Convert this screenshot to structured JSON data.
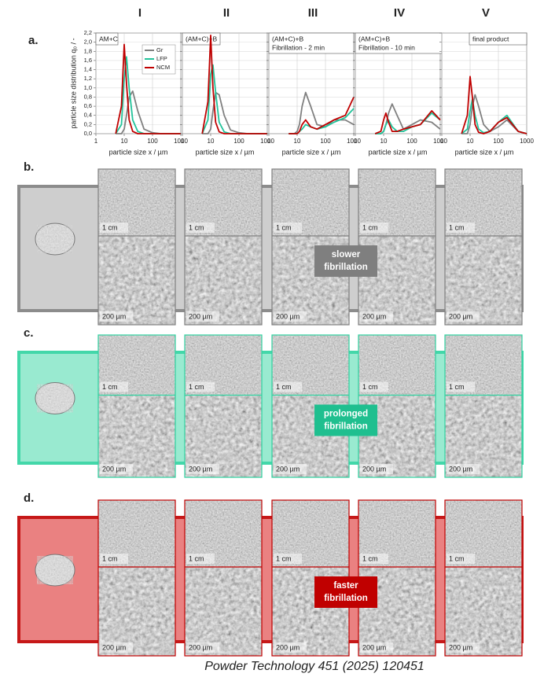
{
  "column_headers": [
    "I",
    "II",
    "III",
    "IV",
    "V"
  ],
  "panel_a_label": "a.",
  "chart_data": [
    {
      "type": "line",
      "y_label": "particle size distribution q₀ / -",
      "x_label": "particle size x / µm",
      "annotation": [
        "AM+C"
      ],
      "xlim": [
        1,
        1000
      ],
      "xticks": [
        1,
        10,
        100,
        1000
      ],
      "log_x": true,
      "ylim": [
        0,
        2.2
      ],
      "grid": true,
      "legend": "top-right",
      "yticks": [
        {
          "value": 0,
          "label": "0,0"
        },
        {
          "value": 0.2,
          "label": "0,2"
        },
        {
          "value": 0.4,
          "label": "0,4"
        },
        {
          "value": 0.6,
          "label": "0,6"
        },
        {
          "value": 0.8,
          "label": "0,8"
        },
        {
          "value": 1,
          "label": "1,0"
        },
        {
          "value": 1.2,
          "label": "1,2"
        },
        {
          "value": 1.4,
          "label": "1,4"
        },
        {
          "value": 1.6,
          "label": "1,6"
        },
        {
          "value": 1.8,
          "label": "1,8"
        },
        {
          "value": 2,
          "label": "2,0"
        },
        {
          "value": 2.2,
          "label": "2,2"
        }
      ],
      "x": [
        5,
        8,
        10,
        12,
        15,
        20,
        30,
        50,
        100,
        200,
        500,
        1000
      ],
      "series": [
        {
          "name": "Gr",
          "color": "#808080",
          "values": [
            0,
            0,
            0.1,
            0.4,
            0.8,
            0.93,
            0.5,
            0.1,
            0.02,
            0,
            0,
            0
          ]
        },
        {
          "name": "LFP",
          "color": "#22c39a",
          "values": [
            0,
            0.2,
            1.2,
            1.68,
            1.0,
            0.3,
            0.05,
            0,
            0,
            0,
            0,
            0
          ]
        },
        {
          "name": "NCM",
          "color": "#c00000",
          "values": [
            0,
            0.6,
            1.95,
            1.1,
            0.3,
            0.05,
            0,
            0,
            0,
            0,
            0,
            0
          ]
        }
      ]
    },
    {
      "type": "line",
      "x_label": "particle size x / µm",
      "annotation": [
        "(AM+C)+B"
      ],
      "xlim": [
        1,
        1000
      ],
      "xticks": [
        1,
        10,
        100,
        1000
      ],
      "log_x": true,
      "ylim": [
        0,
        2.2
      ],
      "grid": true,
      "x": [
        5,
        8,
        10,
        12,
        15,
        20,
        30,
        50,
        100,
        200,
        500,
        1000
      ],
      "series": [
        {
          "color": "#808080",
          "values": [
            0,
            0,
            0.1,
            0.5,
            0.9,
            0.85,
            0.4,
            0.08,
            0.02,
            0,
            0,
            0
          ]
        },
        {
          "color": "#22c39a",
          "values": [
            0,
            0.3,
            1.3,
            1.5,
            0.9,
            0.25,
            0.04,
            0,
            0,
            0,
            0,
            0
          ]
        },
        {
          "color": "#c00000",
          "values": [
            0,
            0.7,
            2.15,
            1.0,
            0.25,
            0.04,
            0,
            0,
            0,
            0,
            0,
            0
          ]
        }
      ]
    },
    {
      "type": "line",
      "x_label": "particle size x / µm",
      "annotation": [
        "(AM+C)+B",
        "Fibrillation - 2 min"
      ],
      "xlim": [
        1,
        1000
      ],
      "xticks": [
        1,
        10,
        100,
        1000
      ],
      "log_x": true,
      "ylim": [
        0,
        2.2
      ],
      "grid": true,
      "x": [
        5,
        8,
        10,
        12,
        15,
        20,
        30,
        50,
        100,
        200,
        500,
        1000
      ],
      "series": [
        {
          "color": "#808080",
          "values": [
            0,
            0,
            0.05,
            0.2,
            0.6,
            0.9,
            0.6,
            0.2,
            0.15,
            0.3,
            0.3,
            0.2
          ]
        },
        {
          "color": "#22c39a",
          "values": [
            0,
            0,
            0,
            0.05,
            0.1,
            0.2,
            0.15,
            0.1,
            0.15,
            0.25,
            0.35,
            0.55
          ]
        },
        {
          "color": "#c00000",
          "values": [
            0,
            0,
            0,
            0.05,
            0.2,
            0.3,
            0.15,
            0.1,
            0.2,
            0.3,
            0.4,
            0.8
          ]
        }
      ]
    },
    {
      "type": "line",
      "x_label": "particle size x / µm",
      "annotation": [
        "(AM+C)+B",
        "Fibrillation - 10 min"
      ],
      "xlim": [
        1,
        1000
      ],
      "xticks": [
        1,
        10,
        100,
        1000
      ],
      "log_x": true,
      "ylim": [
        0,
        2.2
      ],
      "grid": true,
      "x": [
        5,
        8,
        10,
        12,
        15,
        20,
        30,
        50,
        100,
        200,
        500,
        1000
      ],
      "series": [
        {
          "color": "#808080",
          "values": [
            0,
            0,
            0.05,
            0.2,
            0.45,
            0.65,
            0.4,
            0.1,
            0.2,
            0.3,
            0.25,
            0.1
          ]
        },
        {
          "color": "#22c39a",
          "values": [
            0,
            0,
            0.05,
            0.2,
            0.3,
            0.15,
            0.05,
            0.05,
            0.15,
            0.2,
            0.45,
            0.3
          ]
        },
        {
          "color": "#c00000",
          "values": [
            0,
            0.05,
            0.3,
            0.45,
            0.25,
            0.05,
            0.05,
            0.1,
            0.15,
            0.2,
            0.5,
            0.3
          ]
        }
      ]
    },
    {
      "type": "line",
      "x_label": "particle size x / µm",
      "annotation": [
        "final product"
      ],
      "xlim": [
        1,
        1000
      ],
      "xticks": [
        1,
        10,
        100,
        1000
      ],
      "log_x": true,
      "ylim": [
        0,
        2.2
      ],
      "grid": true,
      "x": [
        5,
        8,
        10,
        12,
        15,
        20,
        30,
        50,
        100,
        200,
        500,
        1000
      ],
      "series": [
        {
          "color": "#808080",
          "values": [
            0,
            0,
            0.2,
            0.6,
            0.85,
            0.6,
            0.2,
            0.05,
            0.15,
            0.3,
            0.05,
            0
          ]
        },
        {
          "color": "#22c39a",
          "values": [
            0,
            0.1,
            0.5,
            0.75,
            0.4,
            0.1,
            0.02,
            0.05,
            0.25,
            0.4,
            0.05,
            0
          ]
        },
        {
          "color": "#c00000",
          "values": [
            0,
            0.4,
            1.25,
            0.8,
            0.2,
            0.03,
            0,
            0.05,
            0.25,
            0.35,
            0.05,
            0
          ]
        }
      ]
    }
  ],
  "scale_bars": {
    "top": "1 cm",
    "bottom": "200 µm"
  },
  "panels": [
    {
      "label": "b.",
      "color": "#808080",
      "fill": "#c9c9c9",
      "note": [
        "slower",
        "fibrillation"
      ],
      "note_color": "#7f7f7f"
    },
    {
      "label": "c.",
      "color": "#2fd3a0",
      "fill": "#8fe8cb",
      "note": [
        "prolonged",
        "fibrillation"
      ],
      "note_color": "#1fbf8f"
    },
    {
      "label": "d.",
      "color": "#c00000",
      "fill": "#e87474",
      "note": [
        "faster",
        "fibrillation"
      ],
      "note_color": "#c00000"
    }
  ],
  "caption": "Powder Technology 451 (2025) 120451"
}
